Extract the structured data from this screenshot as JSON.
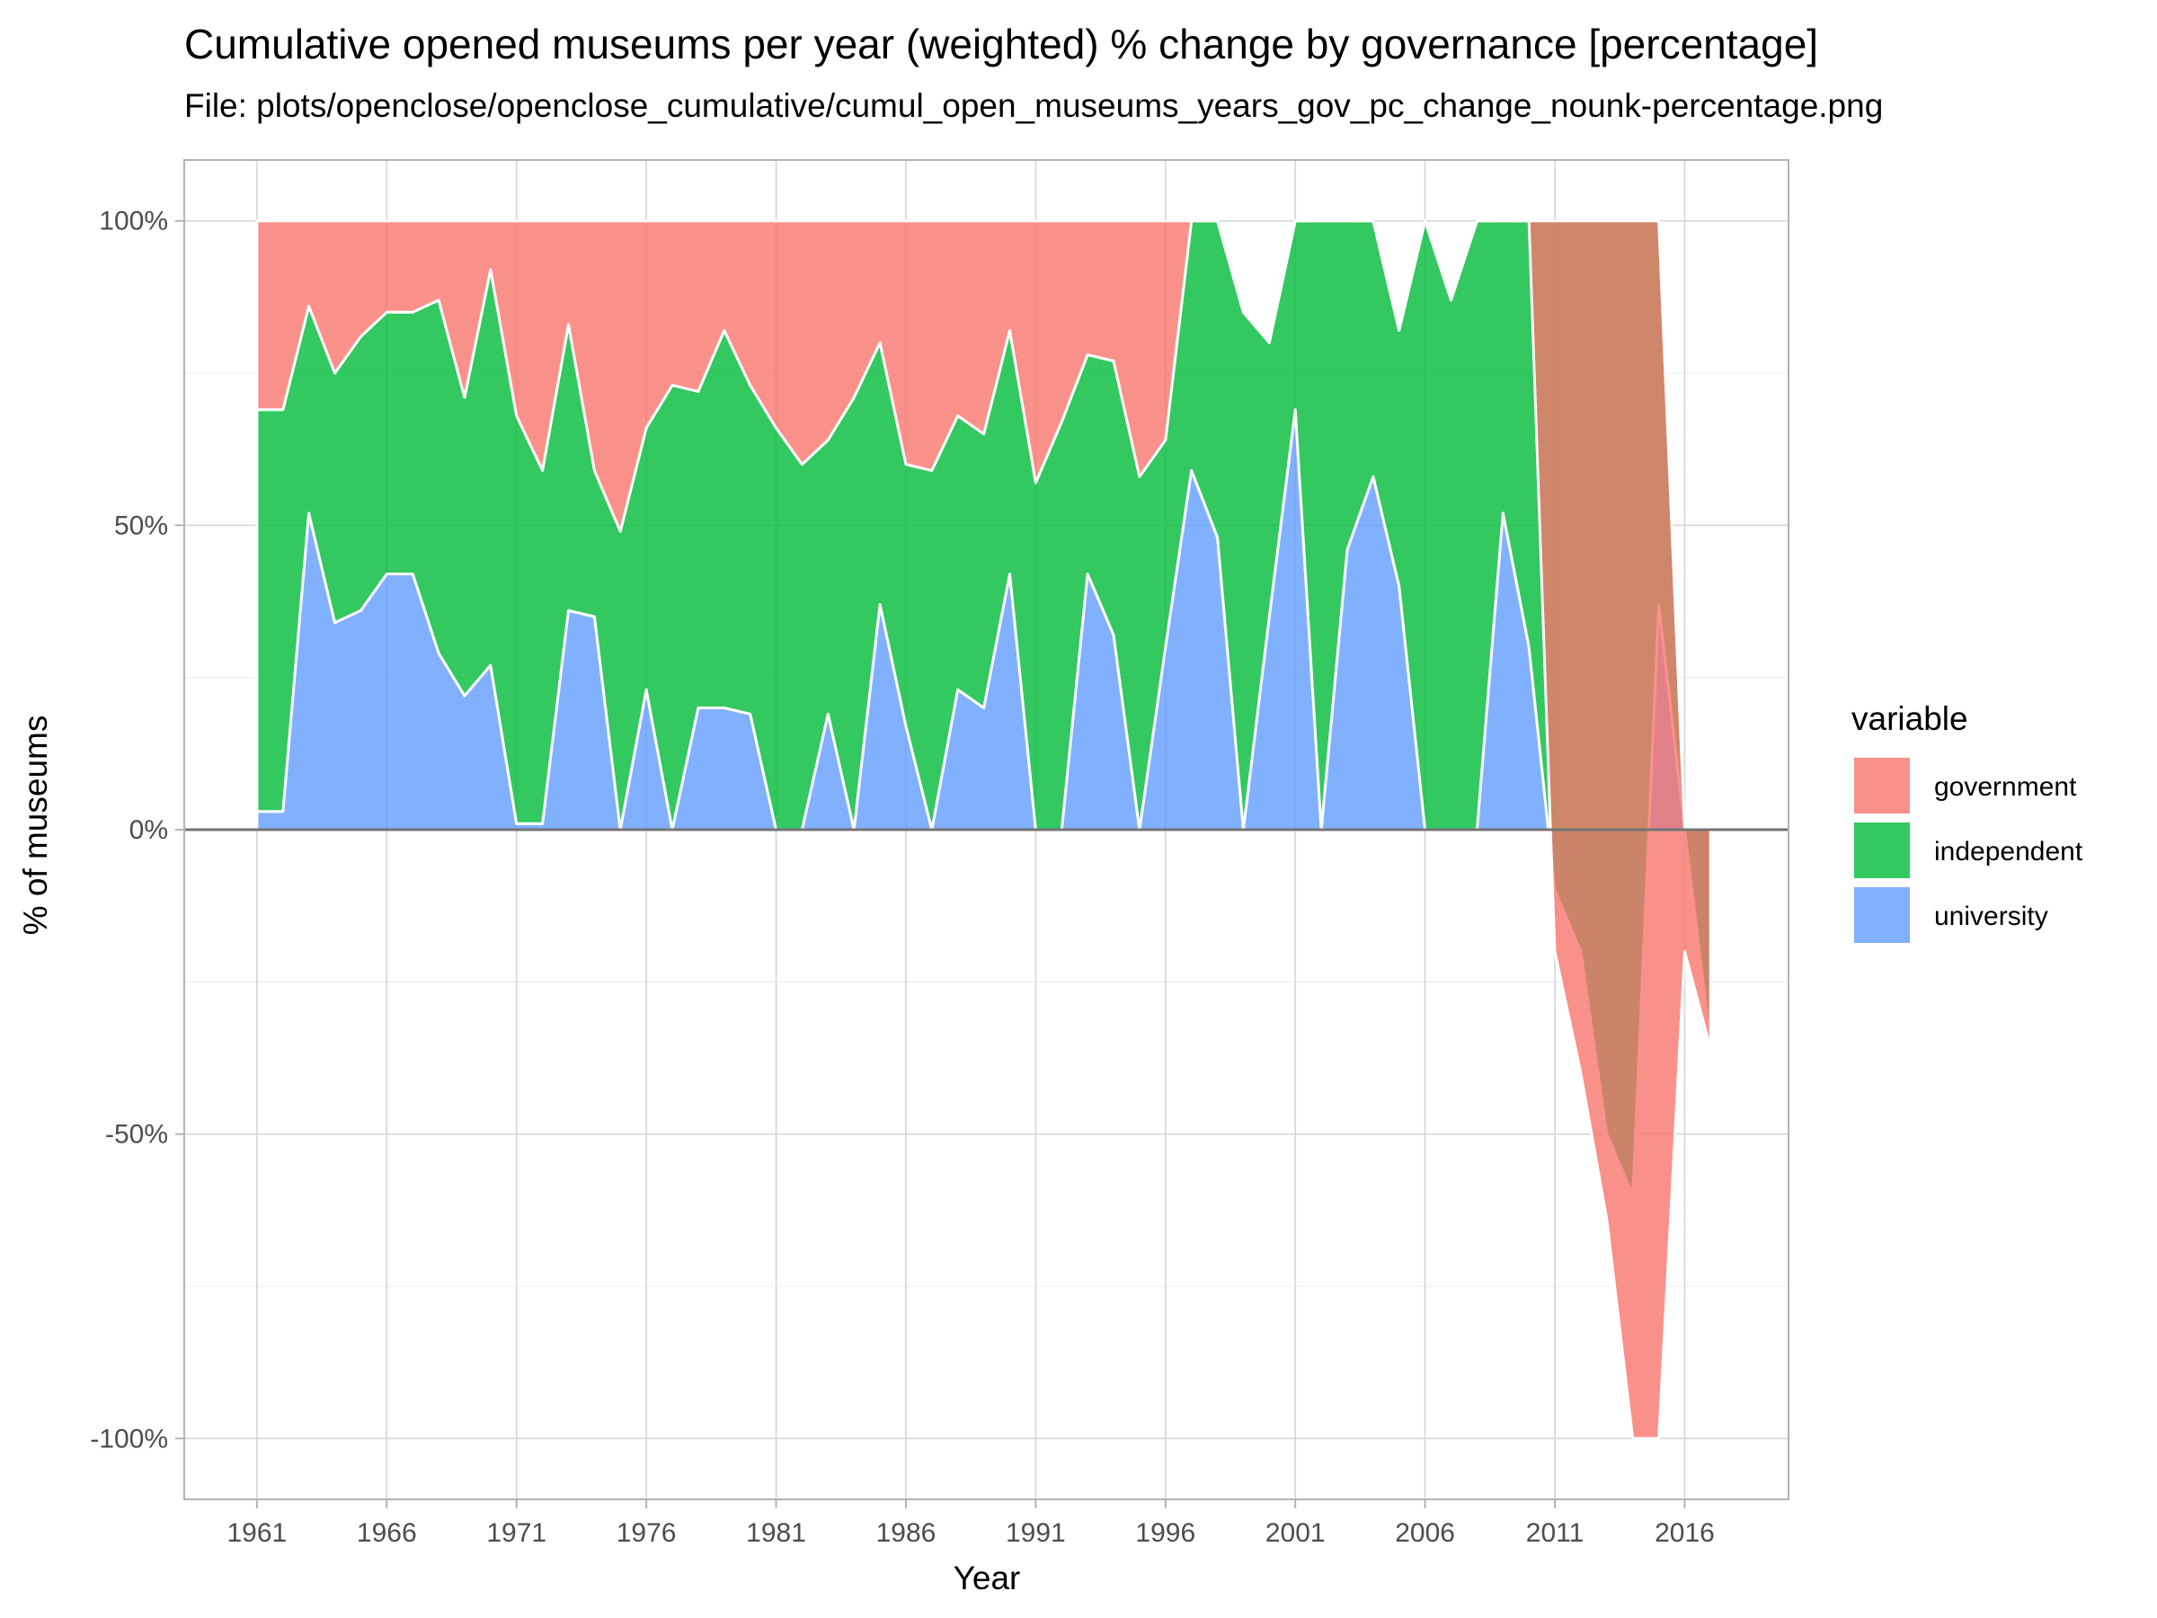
{
  "title": "Cumulative opened museums per year (weighted) % change by governance [percentage]",
  "subtitle": "File: plots/openclose/openclose_cumulative/cumul_open_museums_years_gov_pc_change_nounk-percentage.png",
  "chart_data": {
    "type": "area",
    "xlabel": "Year",
    "ylabel": "% of museums",
    "xlim": [
      1958.2,
      2020.0
    ],
    "ylim": [
      -110,
      110
    ],
    "x_ticks": [
      1961,
      1966,
      1971,
      1976,
      1981,
      1986,
      1991,
      1996,
      2001,
      2006,
      2011,
      2016
    ],
    "x_tick_labels": [
      "1961",
      "1966",
      "1971",
      "1976",
      "1981",
      "1986",
      "1991",
      "1996",
      "2001",
      "2006",
      "2011",
      "2016"
    ],
    "y_ticks": [
      100,
      50,
      0,
      -50,
      -100
    ],
    "y_tick_labels": [
      "100%",
      "50%",
      "0%",
      "-50%",
      "-100%"
    ],
    "grid": true,
    "legend": {
      "title": "variable",
      "position": "right",
      "entries": [
        "government",
        "independent",
        "university"
      ]
    },
    "colors": {
      "government": "#F8766D",
      "independent": "#00BA38",
      "university": "#619CFF"
    },
    "x": [
      1961,
      1962,
      1963,
      1964,
      1965,
      1966,
      1967,
      1968,
      1969,
      1970,
      1971,
      1972,
      1973,
      1974,
      1975,
      1976,
      1977,
      1978,
      1979,
      1980,
      1981,
      1982,
      1983,
      1984,
      1985,
      1986,
      1987,
      1988,
      1989,
      1990,
      1991,
      1992,
      1993,
      1994,
      1995,
      1996,
      1997,
      1998,
      1999,
      2000,
      2001,
      2002,
      2003,
      2004,
      2005,
      2006,
      2007,
      2008,
      2009,
      2010,
      2011,
      2012,
      2013,
      2014,
      2015,
      2016,
      2017
    ],
    "series": [
      {
        "name": "university",
        "values": [
          3,
          3,
          52,
          34,
          36,
          42,
          42,
          29,
          22,
          27,
          1,
          1,
          36,
          35,
          0,
          23,
          0,
          20,
          20,
          19,
          0,
          0,
          19,
          0,
          37,
          17,
          0,
          23,
          20,
          42,
          0,
          0,
          42,
          32,
          0,
          30,
          59,
          48,
          0,
          35,
          69,
          0,
          46,
          58,
          40,
          0,
          0,
          0,
          52,
          30,
          -10,
          -20,
          -50,
          -60,
          37,
          0,
          -35
        ]
      },
      {
        "name": "independent",
        "values": [
          69,
          69,
          86,
          75,
          81,
          85,
          85,
          87,
          71,
          92,
          68,
          59,
          83,
          59,
          49,
          66,
          73,
          72,
          82,
          73,
          66,
          60,
          64,
          71,
          80,
          60,
          59,
          68,
          65,
          82,
          57,
          67,
          78,
          77,
          58,
          64,
          100,
          100,
          85,
          80,
          100,
          100,
          100,
          100,
          82,
          100,
          87,
          100,
          100,
          100,
          100,
          100,
          100,
          100,
          100,
          0,
          0
        ]
      },
      {
        "name": "government",
        "values": [
          100,
          100,
          100,
          100,
          100,
          100,
          100,
          100,
          100,
          100,
          100,
          100,
          100,
          100,
          100,
          100,
          100,
          100,
          100,
          100,
          100,
          100,
          100,
          100,
          100,
          100,
          100,
          100,
          100,
          100,
          100,
          100,
          100,
          100,
          100,
          100,
          100,
          100,
          85,
          80,
          100,
          100,
          100,
          100,
          82,
          100,
          87,
          100,
          100,
          100,
          -20,
          -40,
          -64,
          -100,
          -100,
          -20,
          -36
        ]
      }
    ]
  }
}
